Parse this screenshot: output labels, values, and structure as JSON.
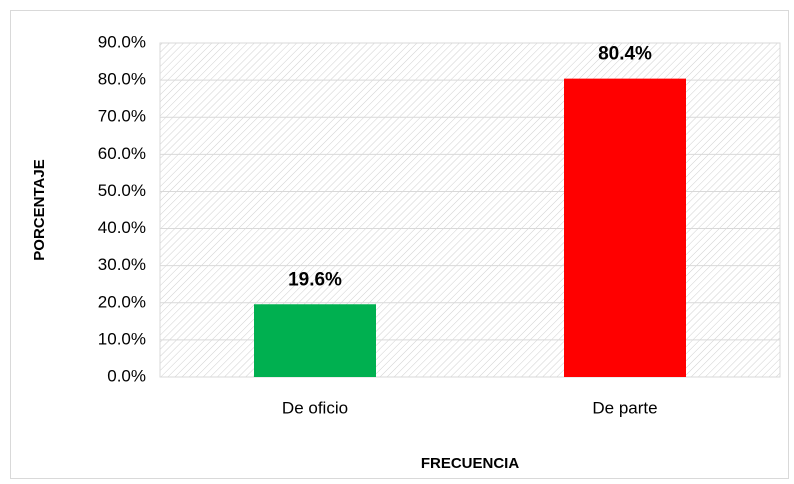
{
  "chart_data": {
    "type": "bar",
    "categories": [
      "De oficio",
      "De parte"
    ],
    "values": [
      19.6,
      80.4
    ],
    "value_labels": [
      "19.6%",
      "80.4%"
    ],
    "colors": [
      "#00b050",
      "#ff0000"
    ],
    "x_label": "FRECUENCIA",
    "y_label": "PORCENTAJE",
    "ylim": [
      0,
      90
    ],
    "yticks": [
      {
        "value": 0,
        "label": "0.0%"
      },
      {
        "value": 10,
        "label": "10.0%"
      },
      {
        "value": 20,
        "label": "20.0%"
      },
      {
        "value": 30,
        "label": "30.0%"
      },
      {
        "value": 40,
        "label": "40.0%"
      },
      {
        "value": 50,
        "label": "50.0%"
      },
      {
        "value": 60,
        "label": "60.0%"
      },
      {
        "value": 70,
        "label": "70.0%"
      },
      {
        "value": 80,
        "label": "80.0%"
      },
      {
        "value": 90,
        "label": "90.0%"
      }
    ],
    "grid": true
  }
}
